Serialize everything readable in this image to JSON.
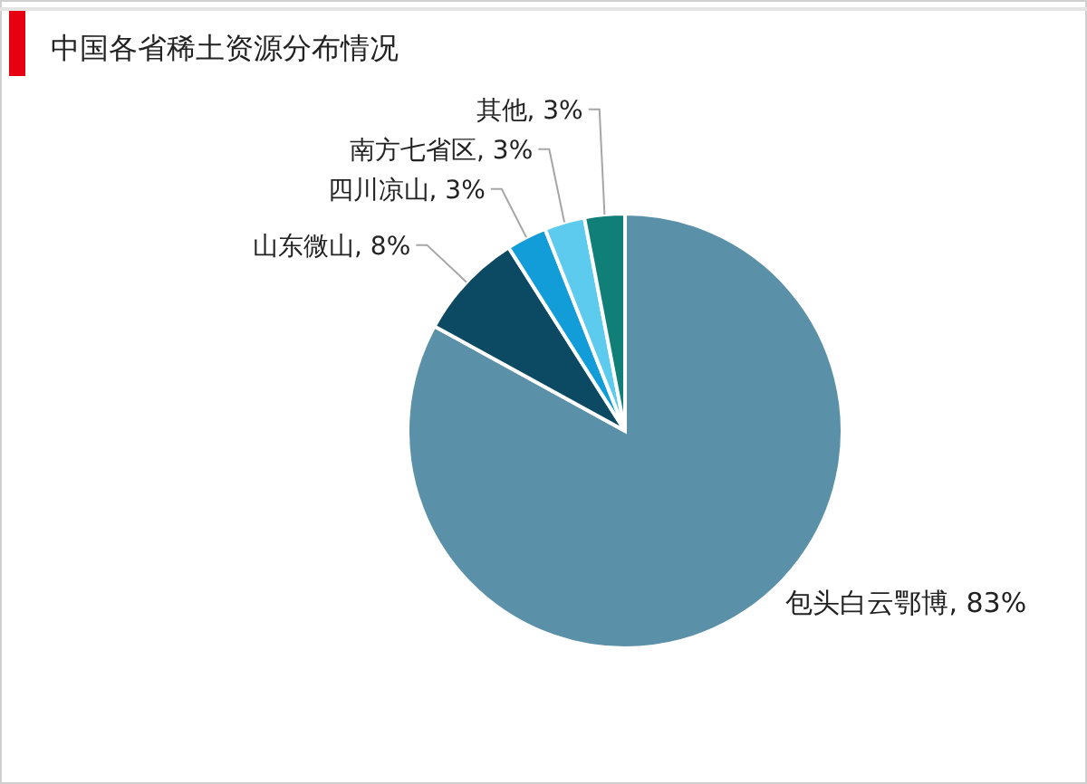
{
  "chart_data": {
    "type": "pie",
    "title": "中国各省稀土资源分布情况",
    "categories": [
      "包头白云鄂博",
      "山东微山",
      "四川凉山",
      "南方七省区",
      "其他"
    ],
    "values": [
      83,
      8,
      3,
      3,
      3
    ],
    "value_labels": [
      "83%",
      "8%",
      "3%",
      "3%",
      "3%"
    ],
    "colors": [
      "#5b91a8",
      "#0b4a62",
      "#139dd8",
      "#5ccbee",
      "#0f7f78"
    ]
  }
}
